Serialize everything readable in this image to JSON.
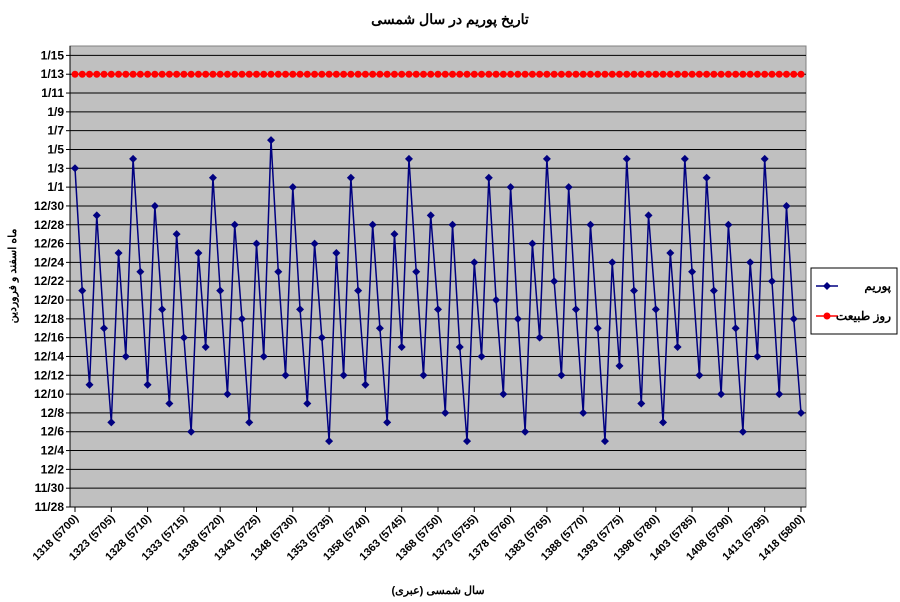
{
  "chart_data": {
    "type": "line",
    "title": "تاریخ پوریم در سال شمسی",
    "x_label": "سال شمسی (عبری)",
    "y_label": "ماه اسفند و فروردین",
    "categories": [
      "1318 (5700)",
      null,
      null,
      null,
      null,
      "1323 (5705)",
      null,
      null,
      null,
      null,
      "1328 (5710)",
      null,
      null,
      null,
      null,
      "1333 (5715)",
      null,
      null,
      null,
      null,
      "1338 (5720)",
      null,
      null,
      null,
      null,
      "1343 (5725)",
      null,
      null,
      null,
      null,
      "1348 (5730)",
      null,
      null,
      null,
      null,
      "1353 (5735)",
      null,
      null,
      null,
      null,
      "1358 (5740)",
      null,
      null,
      null,
      null,
      "1363 (5745)",
      null,
      null,
      null,
      null,
      "1368 (5750)",
      null,
      null,
      null,
      null,
      "1373 (5755)",
      null,
      null,
      null,
      null,
      "1378 (5760)",
      null,
      null,
      null,
      null,
      "1383 (5765)",
      null,
      null,
      null,
      null,
      "1388 (5770)",
      null,
      null,
      null,
      null,
      "1393 (5775)",
      null,
      null,
      null,
      null,
      "1398 (5780)",
      null,
      null,
      null,
      null,
      "1403 (5785)",
      null,
      null,
      null,
      null,
      "1408 (5790)",
      null,
      null,
      null,
      null,
      "1413 (5795)",
      null,
      null,
      null,
      null,
      "1418 (5800)"
    ],
    "series": [
      {
        "name": "پوریم",
        "color": "#000080",
        "marker": "diamond",
        "values": [
          36,
          23,
          13,
          31,
          19,
          9,
          27,
          16,
          37,
          25,
          13,
          32,
          21,
          11,
          29,
          18,
          8,
          27,
          17,
          35,
          23,
          12,
          30,
          20,
          9,
          28,
          16,
          39,
          25,
          14,
          34,
          21,
          11,
          28,
          18,
          7,
          27,
          14,
          35,
          23,
          13,
          30,
          19,
          9,
          29,
          17,
          37,
          25,
          14,
          31,
          21,
          10,
          30,
          17,
          7,
          26,
          16,
          35,
          22,
          12,
          34,
          20,
          8,
          28,
          18,
          37,
          24,
          14,
          34,
          21,
          10,
          30,
          19,
          7,
          26,
          15,
          37,
          23,
          11,
          31,
          21,
          9,
          27,
          17,
          37,
          25,
          14,
          35,
          23,
          12,
          30,
          19,
          8,
          26,
          16,
          37,
          24,
          12,
          32,
          20,
          10
        ]
      },
      {
        "name": "روز طبیعت",
        "color": "#ff0000",
        "marker": "circle",
        "values": [
          46,
          46,
          46,
          46,
          46,
          46,
          46,
          46,
          46,
          46,
          46,
          46,
          46,
          46,
          46,
          46,
          46,
          46,
          46,
          46,
          46,
          46,
          46,
          46,
          46,
          46,
          46,
          46,
          46,
          46,
          46,
          46,
          46,
          46,
          46,
          46,
          46,
          46,
          46,
          46,
          46,
          46,
          46,
          46,
          46,
          46,
          46,
          46,
          46,
          46,
          46,
          46,
          46,
          46,
          46,
          46,
          46,
          46,
          46,
          46,
          46,
          46,
          46,
          46,
          46,
          46,
          46,
          46,
          46,
          46,
          46,
          46,
          46,
          46,
          46,
          46,
          46,
          46,
          46,
          46,
          46,
          46,
          46,
          46,
          46,
          46,
          46,
          46,
          46,
          46,
          46,
          46,
          46,
          46,
          46,
          46,
          46,
          46,
          46,
          46,
          46
        ]
      }
    ],
    "ylim": [
      0,
      49
    ],
    "yticks": [
      {
        "value": 0,
        "label": "11/28"
      },
      {
        "value": 2,
        "label": "11/30"
      },
      {
        "value": 4,
        "label": "12/2"
      },
      {
        "value": 6,
        "label": "12/4"
      },
      {
        "value": 8,
        "label": "12/6"
      },
      {
        "value": 10,
        "label": "12/8"
      },
      {
        "value": 12,
        "label": "12/10"
      },
      {
        "value": 14,
        "label": "12/12"
      },
      {
        "value": 16,
        "label": "12/14"
      },
      {
        "value": 18,
        "label": "12/16"
      },
      {
        "value": 20,
        "label": "12/18"
      },
      {
        "value": 22,
        "label": "12/20"
      },
      {
        "value": 24,
        "label": "12/22"
      },
      {
        "value": 26,
        "label": "12/24"
      },
      {
        "value": 28,
        "label": "12/26"
      },
      {
        "value": 30,
        "label": "12/28"
      },
      {
        "value": 32,
        "label": "12/30"
      },
      {
        "value": 34,
        "label": "1/1"
      },
      {
        "value": 36,
        "label": "1/3"
      },
      {
        "value": 38,
        "label": "1/5"
      },
      {
        "value": 40,
        "label": "1/7"
      },
      {
        "value": 42,
        "label": "1/9"
      },
      {
        "value": 44,
        "label": "1/11"
      },
      {
        "value": 46,
        "label": "1/13"
      },
      {
        "value": 48,
        "label": "1/15"
      }
    ],
    "grid": true,
    "legend": "right",
    "plot_background": "#c0c0c0"
  }
}
